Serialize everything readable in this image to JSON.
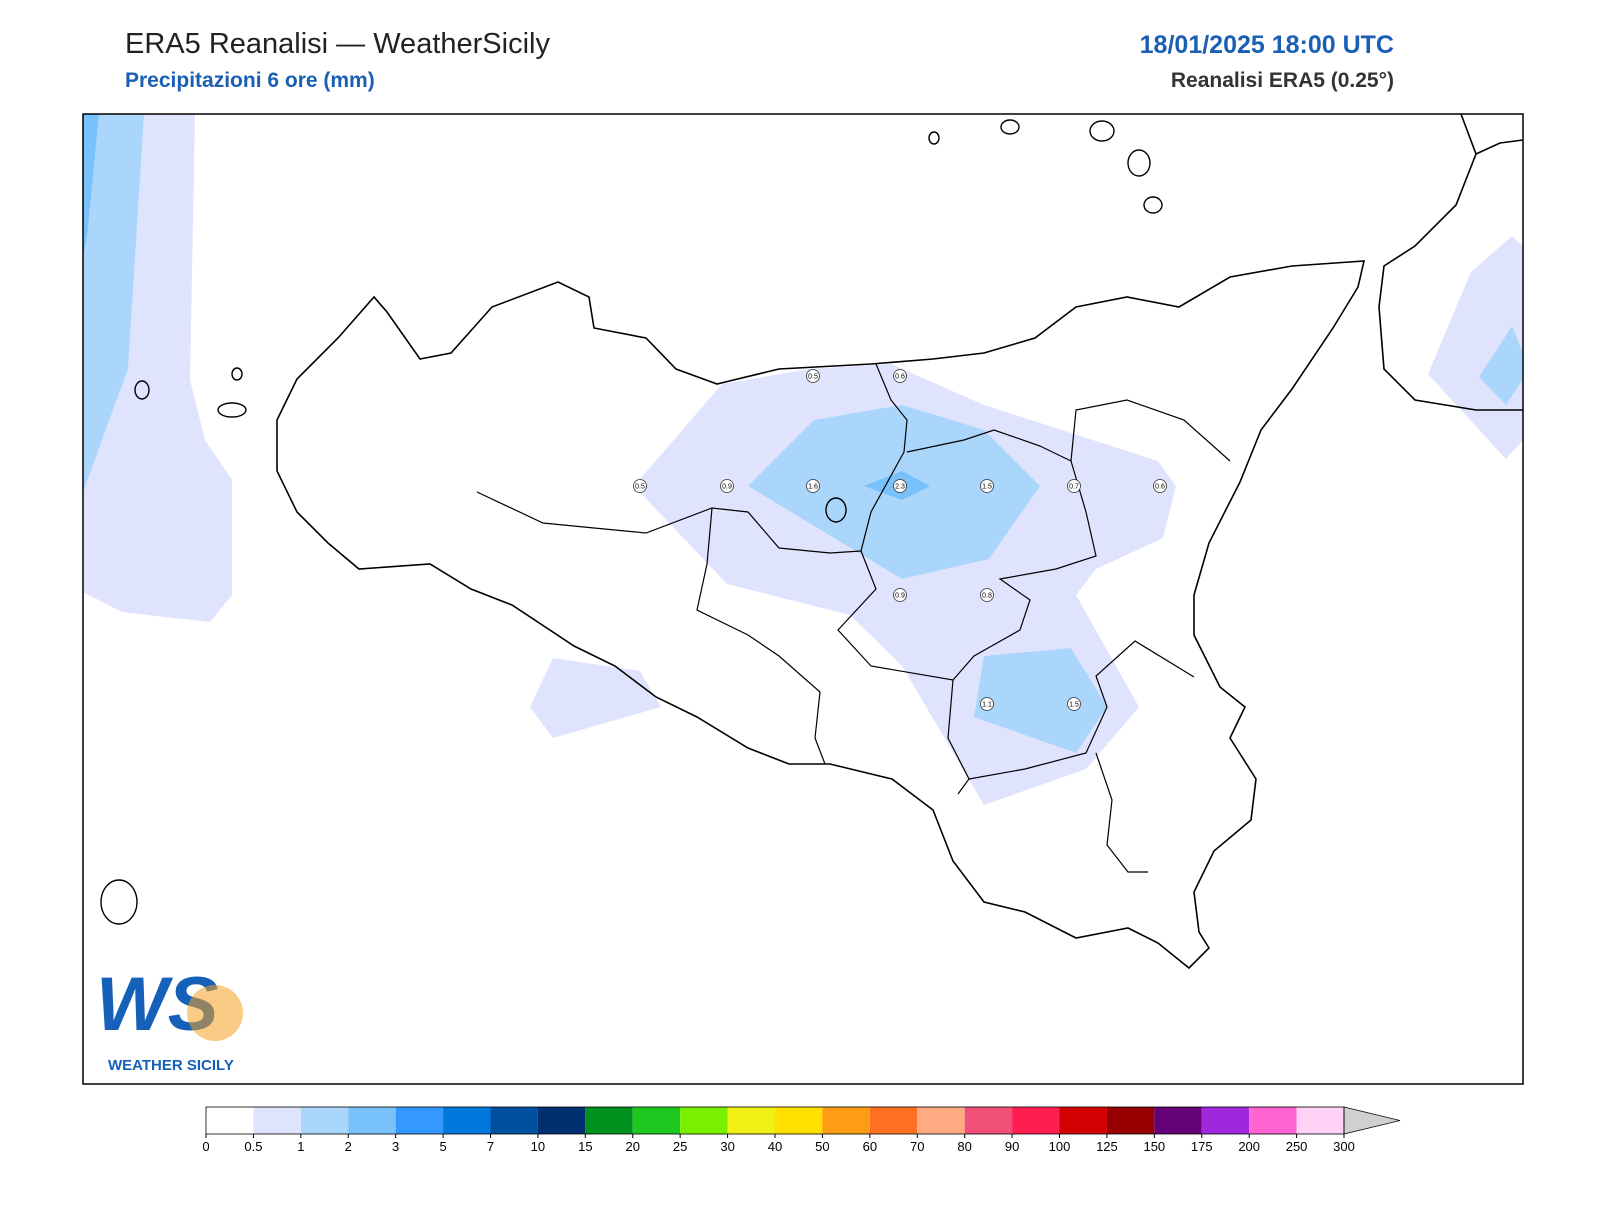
{
  "header": {
    "title": "ERA5 Reanalisi — WeatherSicily",
    "subtitle": "Precipitazioni 6 ore (mm)",
    "datetime": "18/01/2025 18:00 UTC",
    "source": "Reanalisi ERA5 (0.25°)"
  },
  "stations": [
    0.5,
    0.6,
    0.5,
    0.9,
    1.6,
    2.3,
    1.5,
    0.7,
    0.6,
    0.9,
    0.8,
    1.1,
    1.5
  ],
  "colorbar": {
    "levels": [
      0,
      0.5,
      1,
      2,
      3,
      5,
      7,
      10,
      15,
      20,
      25,
      30,
      40,
      50,
      60,
      70,
      80,
      90,
      100,
      125,
      150,
      175,
      200,
      250,
      300
    ],
    "colors": [
      "#ffffff",
      "#e0e3fd",
      "#aad6fb",
      "#78c1fa",
      "#3399ff",
      "#0078dc",
      "#0050a0",
      "#003070",
      "#00901e",
      "#1ec81e",
      "#78f000",
      "#f0f014",
      "#ffe000",
      "#ff9c14",
      "#ff7020",
      "#ffaa80",
      "#f05078",
      "#ff1e50",
      "#d20000",
      "#960000",
      "#640078",
      "#a028dc",
      "#ff64d2",
      "#ffd2f5"
    ],
    "extend_color": "#d0d0d0"
  },
  "logo": {
    "initials": "WS",
    "text": "WEATHER SICILY"
  }
}
